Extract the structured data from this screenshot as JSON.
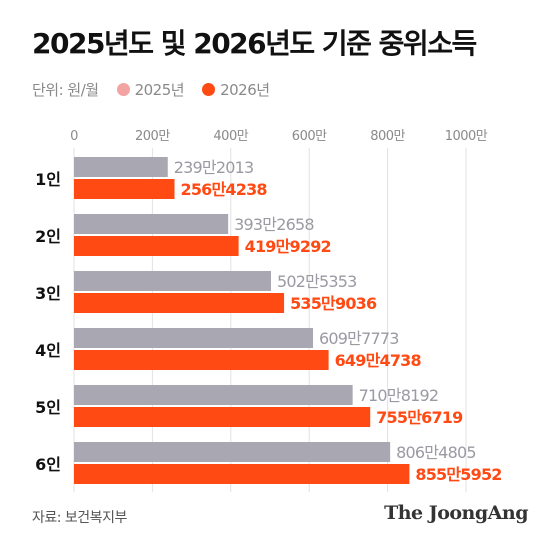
{
  "title": "2025년도 및 2026년도 기준 중위소득",
  "unit_label": "단위: 원/월",
  "source": "자료: 보건복지부",
  "logo": "The JoongAng",
  "colors": {
    "series_2025": "#a9a8b2",
    "series_2025_legend": "#f4a3a3",
    "series_2026": "#ff4a14"
  },
  "chart_data": {
    "type": "bar",
    "orientation": "horizontal",
    "categories": [
      "1인",
      "2인",
      "3인",
      "4인",
      "5인",
      "6인"
    ],
    "series": [
      {
        "name": "2025년",
        "values": [
          2392013,
          3932658,
          5025353,
          6097773,
          7108192,
          8064805
        ],
        "labels": [
          "239만2013",
          "393만2658",
          "502만5353",
          "609만7773",
          "710만8192",
          "806만4805"
        ]
      },
      {
        "name": "2026년",
        "values": [
          2564238,
          4199292,
          5359036,
          6494738,
          7556719,
          8555952
        ],
        "labels": [
          "256만4238",
          "419만9292",
          "535만9036",
          "649만4738",
          "755만6719",
          "855만5952"
        ]
      }
    ],
    "xlim": [
      0,
      10000000
    ],
    "ticks": [
      0,
      2000000,
      4000000,
      6000000,
      8000000,
      10000000
    ],
    "tick_labels": [
      "0",
      "200만",
      "400만",
      "600만",
      "800만",
      "1000만"
    ],
    "grid": true,
    "legend": "top-left"
  }
}
